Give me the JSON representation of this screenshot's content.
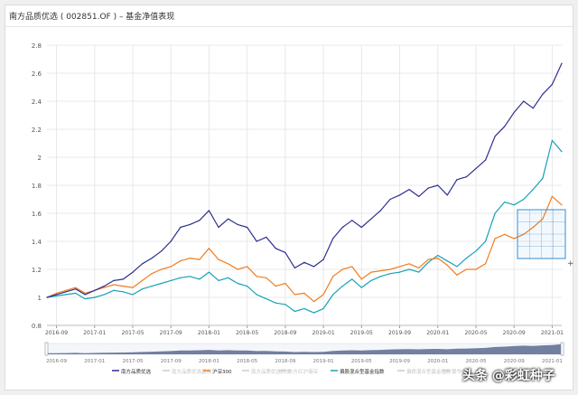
{
  "window": {
    "title": "南方品质优选 ( 002851.OF ) – 基金净值表现"
  },
  "watermark": "头条 @彩虹种子",
  "colors": {
    "fund": "#2d2f8f",
    "hs300": "#f07d1e",
    "bench": "#17a2b8",
    "grid": "#e8e8e8",
    "axis_text": "#555555",
    "navigator_fill": "#596b8f",
    "crosshair": "#2f8fd8"
  },
  "chart_data": {
    "type": "line",
    "title": "",
    "xlabel": "",
    "ylabel": "",
    "ylim": [
      0.8,
      2.8
    ],
    "yticks": [
      "0.8",
      "1",
      "1.2",
      "1.4",
      "1.6",
      "1.8",
      "2",
      "2.2",
      "2.4",
      "2.6",
      "2.8"
    ],
    "xticks": [
      "2016-09",
      "2017-01",
      "2017-05",
      "2017-09",
      "2018-01",
      "2018-05",
      "2018-09",
      "2019-01",
      "2019-05",
      "2019-09",
      "2020-01",
      "2020-05",
      "2020-09",
      "2021-01"
    ],
    "navigator_ticks": [
      "2016-09",
      "2017-01",
      "2017-05",
      "2017-09",
      "2018-01",
      "2018-05",
      "2018-09",
      "2019-01",
      "2019-05",
      "2019-09",
      "2020-01",
      "2020-05",
      "2020-09",
      "2021-01"
    ],
    "x_unit": "month",
    "x_start": "2016-08",
    "x_end": "2021-02",
    "grid": true,
    "legend_position": "bottom",
    "series": [
      {
        "name": "南方品质优选",
        "visible": true,
        "x": [
          "2016-08",
          "2016-09",
          "2016-10",
          "2016-11",
          "2016-12",
          "2017-01",
          "2017-02",
          "2017-03",
          "2017-04",
          "2017-05",
          "2017-06",
          "2017-07",
          "2017-08",
          "2017-09",
          "2017-10",
          "2017-11",
          "2017-12",
          "2018-01",
          "2018-02",
          "2018-03",
          "2018-04",
          "2018-05",
          "2018-06",
          "2018-07",
          "2018-08",
          "2018-09",
          "2018-10",
          "2018-11",
          "2018-12",
          "2019-01",
          "2019-02",
          "2019-03",
          "2019-04",
          "2019-05",
          "2019-06",
          "2019-07",
          "2019-08",
          "2019-09",
          "2019-10",
          "2019-11",
          "2019-12",
          "2020-01",
          "2020-02",
          "2020-03",
          "2020-04",
          "2020-05",
          "2020-06",
          "2020-07",
          "2020-08",
          "2020-09",
          "2020-10",
          "2020-11",
          "2020-12",
          "2021-01",
          "2021-02"
        ],
        "y": [
          1.0,
          1.02,
          1.04,
          1.06,
          1.02,
          1.05,
          1.08,
          1.12,
          1.13,
          1.18,
          1.24,
          1.28,
          1.33,
          1.4,
          1.5,
          1.52,
          1.55,
          1.62,
          1.5,
          1.56,
          1.52,
          1.5,
          1.4,
          1.43,
          1.35,
          1.32,
          1.21,
          1.25,
          1.22,
          1.27,
          1.42,
          1.5,
          1.55,
          1.5,
          1.56,
          1.62,
          1.7,
          1.73,
          1.77,
          1.72,
          1.78,
          1.8,
          1.73,
          1.84,
          1.86,
          1.92,
          1.98,
          2.15,
          2.22,
          2.32,
          2.4,
          2.35,
          2.45,
          2.52,
          2.67
        ]
      },
      {
        "name": "南方品质优选基准",
        "visible": false
      },
      {
        "name": "沪深300",
        "visible": true,
        "x": [
          "2016-08",
          "2016-09",
          "2016-10",
          "2016-11",
          "2016-12",
          "2017-01",
          "2017-02",
          "2017-03",
          "2017-04",
          "2017-05",
          "2017-06",
          "2017-07",
          "2017-08",
          "2017-09",
          "2017-10",
          "2017-11",
          "2017-12",
          "2018-01",
          "2018-02",
          "2018-03",
          "2018-04",
          "2018-05",
          "2018-06",
          "2018-07",
          "2018-08",
          "2018-09",
          "2018-10",
          "2018-11",
          "2018-12",
          "2019-01",
          "2019-02",
          "2019-03",
          "2019-04",
          "2019-05",
          "2019-06",
          "2019-07",
          "2019-08",
          "2019-09",
          "2019-10",
          "2019-11",
          "2019-12",
          "2020-01",
          "2020-02",
          "2020-03",
          "2020-04",
          "2020-05",
          "2020-06",
          "2020-07",
          "2020-08",
          "2020-09",
          "2020-10",
          "2020-11",
          "2020-12",
          "2021-01",
          "2021-02"
        ],
        "y": [
          1.0,
          1.03,
          1.05,
          1.07,
          1.03,
          1.05,
          1.07,
          1.09,
          1.08,
          1.07,
          1.12,
          1.17,
          1.2,
          1.22,
          1.26,
          1.28,
          1.27,
          1.35,
          1.27,
          1.24,
          1.2,
          1.22,
          1.15,
          1.14,
          1.08,
          1.1,
          1.02,
          1.03,
          0.97,
          1.02,
          1.15,
          1.2,
          1.22,
          1.13,
          1.18,
          1.19,
          1.2,
          1.22,
          1.24,
          1.21,
          1.27,
          1.28,
          1.23,
          1.16,
          1.2,
          1.2,
          1.24,
          1.42,
          1.45,
          1.42,
          1.45,
          1.5,
          1.56,
          1.72,
          1.66
        ]
      },
      {
        "name": "南方品质优选同类",
        "visible": false
      },
      {
        "name": "东方红沪港深",
        "visible": false
      },
      {
        "name": "偏股混合型基金指数",
        "visible": true,
        "x": [
          "2016-08",
          "2016-09",
          "2016-10",
          "2016-11",
          "2016-12",
          "2017-01",
          "2017-02",
          "2017-03",
          "2017-04",
          "2017-05",
          "2017-06",
          "2017-07",
          "2017-08",
          "2017-09",
          "2017-10",
          "2017-11",
          "2017-12",
          "2018-01",
          "2018-02",
          "2018-03",
          "2018-04",
          "2018-05",
          "2018-06",
          "2018-07",
          "2018-08",
          "2018-09",
          "2018-10",
          "2018-11",
          "2018-12",
          "2019-01",
          "2019-02",
          "2019-03",
          "2019-04",
          "2019-05",
          "2019-06",
          "2019-07",
          "2019-08",
          "2019-09",
          "2019-10",
          "2019-11",
          "2019-12",
          "2020-01",
          "2020-02",
          "2020-03",
          "2020-04",
          "2020-05",
          "2020-06",
          "2020-07",
          "2020-08",
          "2020-09",
          "2020-10",
          "2020-11",
          "2020-12",
          "2021-01",
          "2021-02"
        ],
        "y": [
          1.0,
          1.01,
          1.02,
          1.03,
          0.99,
          1.0,
          1.02,
          1.05,
          1.04,
          1.02,
          1.06,
          1.08,
          1.1,
          1.12,
          1.14,
          1.15,
          1.13,
          1.18,
          1.12,
          1.14,
          1.1,
          1.08,
          1.02,
          0.99,
          0.96,
          0.95,
          0.9,
          0.92,
          0.89,
          0.92,
          1.02,
          1.08,
          1.13,
          1.07,
          1.12,
          1.15,
          1.17,
          1.18,
          1.2,
          1.18,
          1.25,
          1.3,
          1.26,
          1.22,
          1.28,
          1.33,
          1.4,
          1.6,
          1.68,
          1.66,
          1.7,
          1.77,
          1.85,
          2.12,
          2.04
        ]
      },
      {
        "name": "偏债混合型基金指数",
        "visible": false
      },
      {
        "name": "银华中证",
        "visible": false
      }
    ]
  }
}
